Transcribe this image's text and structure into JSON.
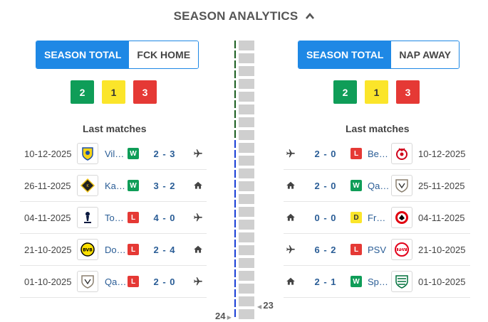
{
  "header": {
    "title": "SEASON ANALYTICS"
  },
  "left": {
    "toggle": [
      {
        "label": "SEASON TOTAL",
        "active": true
      },
      {
        "label": "FCK HOME",
        "active": false
      }
    ],
    "counts": {
      "wins": "2",
      "draws": "1",
      "losses": "3"
    },
    "last_label": "Last matches",
    "matches": [
      {
        "date": "10-12-2025",
        "team": "Villarreal",
        "team_short": "Vil…",
        "result": "W",
        "score": "2 - 3",
        "venue": "away",
        "crest": "villarreal-crest"
      },
      {
        "date": "26-11-2025",
        "team": "Kairat",
        "team_short": "Ka…",
        "result": "W",
        "score": "3 - 2",
        "venue": "home",
        "crest": "kairat-crest"
      },
      {
        "date": "04-11-2025",
        "team": "Tottenham",
        "team_short": "To…",
        "result": "L",
        "score": "4 - 0",
        "venue": "away",
        "crest": "tottenham-crest"
      },
      {
        "date": "21-10-2025",
        "team": "Dortmund",
        "team_short": "Do…",
        "result": "L",
        "score": "2 - 4",
        "venue": "home",
        "crest": "dortmund-crest"
      },
      {
        "date": "01-10-2025",
        "team": "Qarabag",
        "team_short": "Qa…",
        "result": "L",
        "score": "2 - 0",
        "venue": "away",
        "crest": "qarabag-crest"
      }
    ]
  },
  "right": {
    "toggle": [
      {
        "label": "SEASON TOTAL",
        "active": true
      },
      {
        "label": "NAP AWAY",
        "active": false
      }
    ],
    "counts": {
      "wins": "2",
      "draws": "1",
      "losses": "3"
    },
    "last_label": "Last matches",
    "matches": [
      {
        "date": "10-12-2025",
        "team": "Benfica",
        "team_short": "Be…",
        "result": "L",
        "score": "2 - 0",
        "venue": "away",
        "crest": "benfica-crest"
      },
      {
        "date": "25-11-2025",
        "team": "Qarabag",
        "team_short": "Qa…",
        "result": "W",
        "score": "2 - 0",
        "venue": "home",
        "crest": "qarabag-crest"
      },
      {
        "date": "04-11-2025",
        "team": "Frankfurt",
        "team_short": "Fr…",
        "result": "D",
        "score": "0 - 0",
        "venue": "home",
        "crest": "frankfurt-crest"
      },
      {
        "date": "21-10-2025",
        "team": "PSV",
        "team_short": "PSV",
        "result": "L",
        "score": "6 - 2",
        "venue": "away",
        "crest": "psv-crest"
      },
      {
        "date": "01-10-2025",
        "team": "Sporting",
        "team_short": "Sp…",
        "result": "W",
        "score": "2 - 1",
        "venue": "home",
        "crest": "sporting-crest"
      }
    ]
  },
  "timeline": {
    "left_marker": "24",
    "right_marker": "23",
    "colors": {
      "dark": "#1b5e20",
      "blue": "#1a3fd6",
      "bar": "#cfcfcf"
    }
  }
}
